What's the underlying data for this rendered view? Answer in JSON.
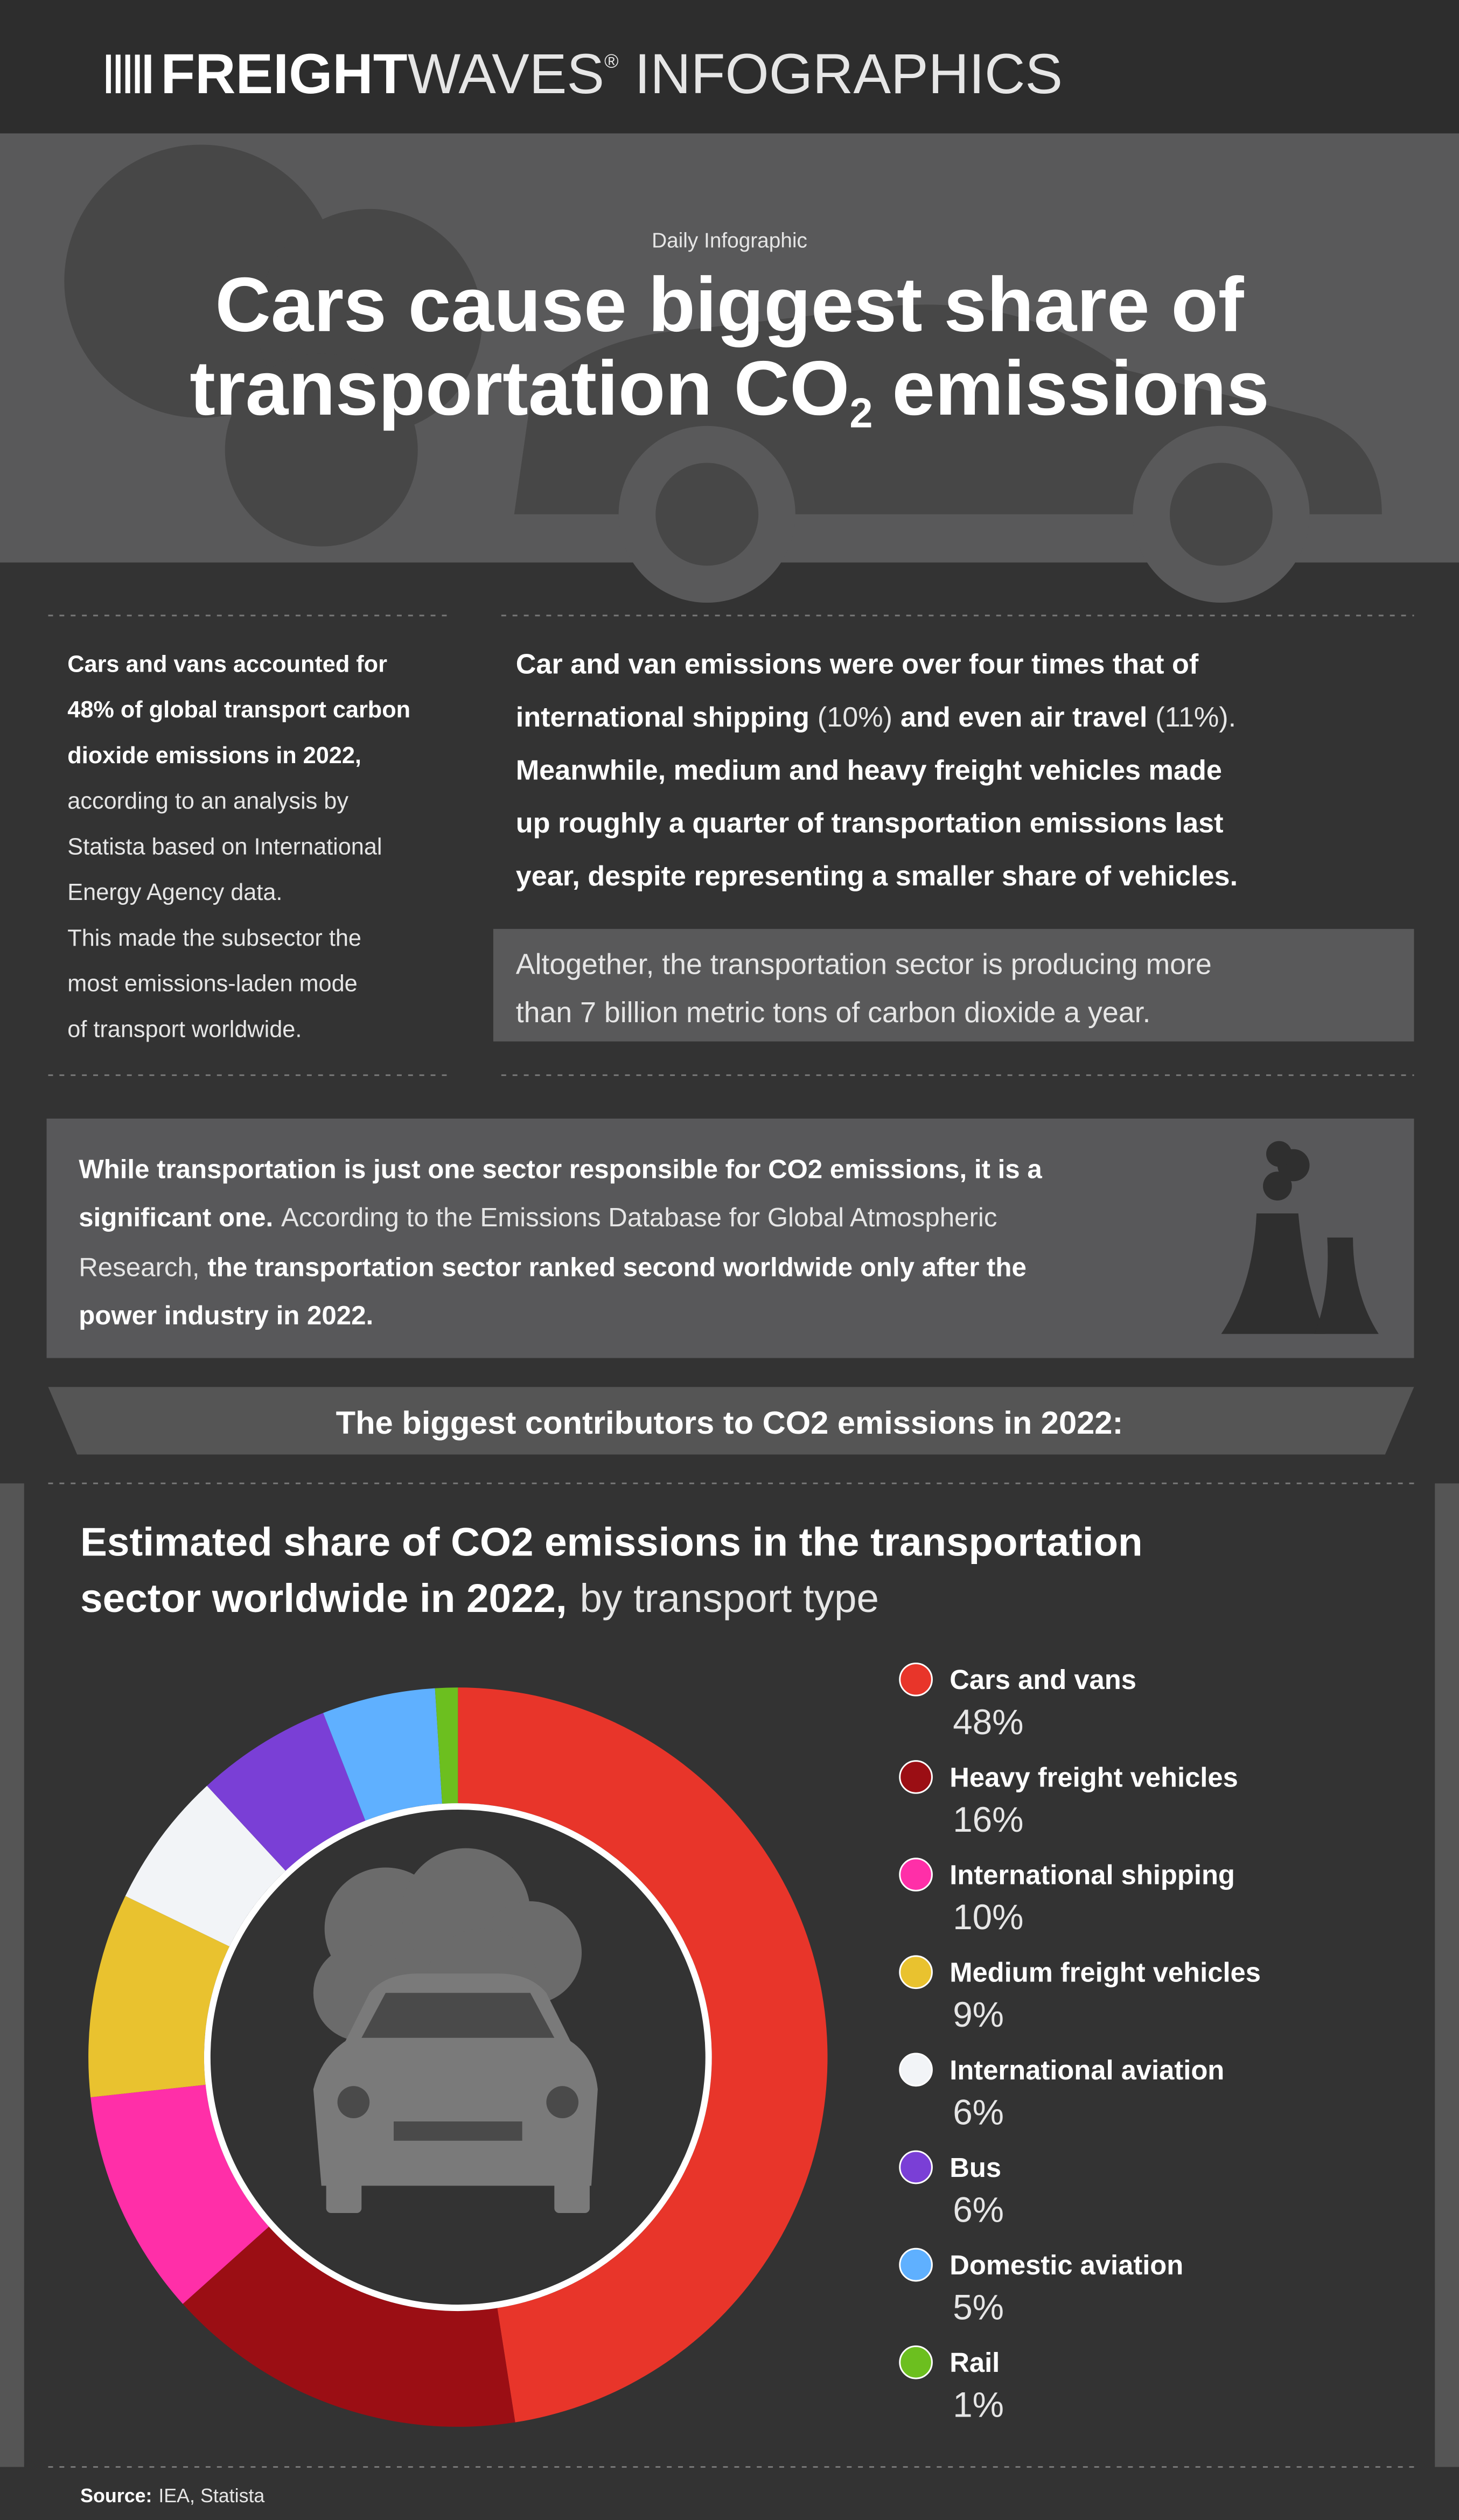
{
  "header": {
    "brand": [
      "FREIGHT",
      "WAVES",
      "®"
    ],
    "section": "INFOGRAPHICS"
  },
  "hero": {
    "kicker": "Daily Infographic",
    "title": [
      "Cars cause biggest share of",
      "transportation CO",
      "2",
      "emissions"
    ]
  },
  "summary": {
    "lines": [
      "Cars and vans accounted for",
      "48% of global transport carbon",
      "dioxide emissions in 2022,",
      "according to an analysis by",
      "Statista based on International",
      "Energy Agency data.",
      "This made the subsector the",
      "most emissions-laden mode",
      "of transport worldwide."
    ]
  },
  "detail": {
    "lines": [
      [
        "Car and van emissions were over four times that of"
      ],
      [
        "international shipping",
        "(10%)",
        "and even air travel",
        "(11%)."
      ],
      [
        "Meanwhile, medium and heavy freight vehicles made"
      ],
      [
        "up roughly a quarter of transportation emissions last"
      ],
      [
        "year, despite representing a smaller share of vehicles."
      ]
    ]
  },
  "callout": {
    "lines": [
      "Altogether, the transportation sector is producing more",
      "than 7 billion metric tons of carbon dioxide a year."
    ]
  },
  "context": {
    "lines": [
      [
        "While transportation is just one sector responsible for CO2 emissions, it is a"
      ],
      [
        "significant one.",
        "According to the Emissions Database for Global Atmospheric"
      ],
      [
        "Research,",
        "the transportation sector ranked second worldwide only after the"
      ],
      [
        "power industry in 2022."
      ]
    ]
  },
  "banner": "The biggest contributors to CO2 emissions in 2022:",
  "chart_data": {
    "type": "pie",
    "title": [
      "Estimated share of CO2 emissions in the transportation",
      "sector worldwide in 2022,"
    ],
    "subtitle": "by transport type",
    "categories": [
      "Cars and vans",
      "Heavy freight vehicles",
      "International shipping",
      "Medium freight vehicles",
      "International aviation",
      "Bus",
      "Domestic aviation",
      "Rail"
    ],
    "values": [
      48,
      16,
      10,
      9,
      6,
      6,
      5,
      1
    ],
    "value_labels": [
      "48%",
      "16%",
      "10%",
      "9%",
      "6%",
      "6%",
      "5%",
      "1%"
    ],
    "colors": [
      "#e8352a",
      "#9b0e14",
      "#ff2fa8",
      "#e9c22f",
      "#f2f4f7",
      "#7a3fd6",
      "#5fb0ff",
      "#6cbf1f"
    ]
  },
  "footer": {
    "label": "Source:",
    "text": "IEA, Statista"
  }
}
